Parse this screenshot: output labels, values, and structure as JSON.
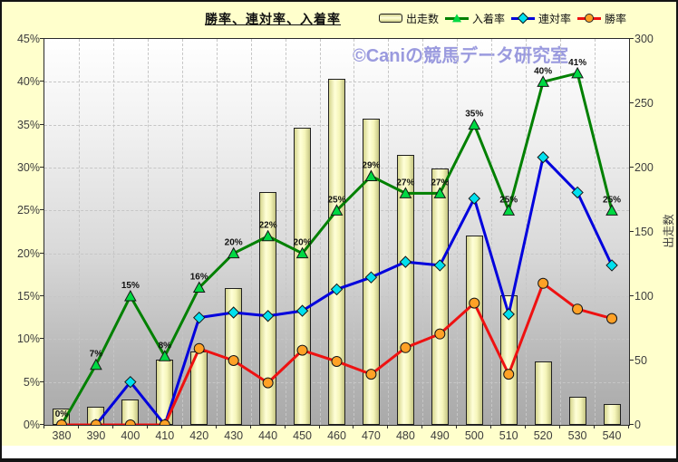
{
  "title": "勝率、連対率、入着率",
  "watermark": "©Caniの競馬データ研究室",
  "legend": {
    "items": [
      {
        "label": "出走数",
        "type": "bar",
        "color": "#ffffcc"
      },
      {
        "label": "入着率",
        "type": "line-triangle",
        "line_color": "#008000",
        "marker_color": "#00d943"
      },
      {
        "label": "連対率",
        "type": "line-diamond",
        "line_color": "#0000dd",
        "marker_color": "#00e0ee"
      },
      {
        "label": "勝率",
        "type": "line-circle",
        "line_color": "#ee1111",
        "marker_color": "#ffa126"
      }
    ]
  },
  "chart_data": {
    "type": "bar",
    "subtype": "combo-bar-lines",
    "categories": [
      "380",
      "390",
      "400",
      "410",
      "420",
      "430",
      "440",
      "450",
      "460",
      "470",
      "480",
      "490",
      "500",
      "510",
      "520",
      "530",
      "540"
    ],
    "series": [
      {
        "name": "出走数",
        "type": "bar",
        "axis": "right",
        "values": [
          13,
          14,
          20,
          51,
          57,
          106,
          181,
          231,
          269,
          238,
          210,
          199,
          147,
          101,
          49,
          22,
          16
        ]
      },
      {
        "name": "入着率",
        "type": "line",
        "marker": "triangle",
        "axis": "left",
        "line_color": "#008000",
        "marker_color": "#00d943",
        "values": [
          0,
          7,
          15,
          8,
          16,
          20,
          22,
          20,
          25,
          29,
          27,
          27,
          35,
          25,
          40,
          41,
          25
        ],
        "labels": [
          "0%",
          "7%",
          "15%",
          "8%",
          "16%",
          "20%",
          "22%",
          "20%",
          "25%",
          "29%",
          "27%",
          "27%",
          "35%",
          "25%",
          "40%",
          "41%",
          "25%"
        ]
      },
      {
        "name": "連対率",
        "type": "line",
        "marker": "diamond",
        "axis": "left",
        "line_color": "#0000dd",
        "marker_color": "#00e0ee",
        "values": [
          0,
          0,
          5,
          0,
          12.5,
          13.1,
          12.7,
          13.3,
          15.8,
          17.2,
          19.0,
          18.6,
          26.4,
          12.9,
          31.2,
          27.1,
          18.6
        ]
      },
      {
        "name": "勝率",
        "type": "line",
        "marker": "circle",
        "axis": "left",
        "line_color": "#ee1111",
        "marker_color": "#ffa126",
        "values": [
          0,
          0,
          0,
          0,
          8.9,
          7.5,
          4.9,
          8.7,
          7.4,
          5.9,
          9.0,
          10.6,
          14.2,
          5.9,
          16.5,
          13.5,
          12.4
        ]
      }
    ],
    "y_left": {
      "min": 0,
      "max": 45,
      "step": 5,
      "ticks": [
        "0%",
        "5%",
        "10%",
        "15%",
        "20%",
        "25%",
        "30%",
        "35%",
        "40%",
        "45%"
      ]
    },
    "y_right": {
      "min": 0,
      "max": 300,
      "step": 50,
      "title": "出走数",
      "ticks": [
        "0",
        "50",
        "100",
        "150",
        "200",
        "250",
        "300"
      ]
    },
    "grid": "dashed-both",
    "legend_position": "top-right",
    "plot_background": "gradient-white-to-gray"
  }
}
